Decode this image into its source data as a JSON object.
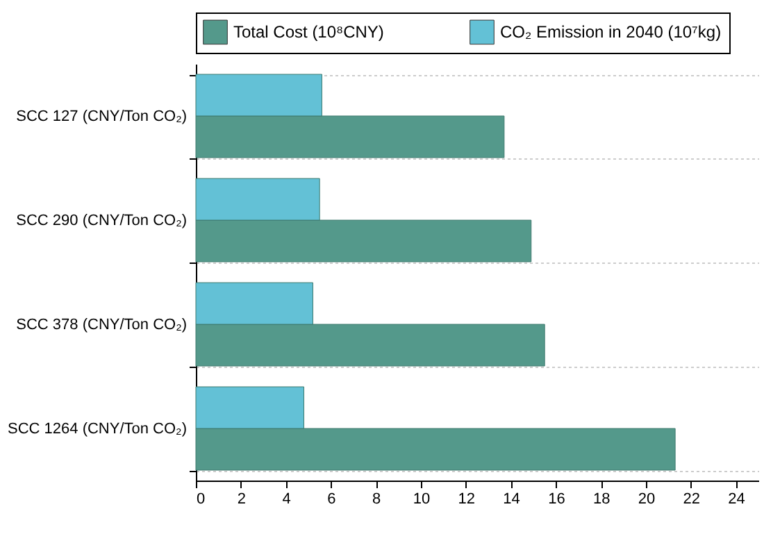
{
  "chart_data": {
    "type": "bar",
    "orientation": "horizontal",
    "categories": [
      "SCC 127 (CNY/Ton CO₂)",
      "SCC 290 (CNY/Ton CO₂)",
      "SCC 378 (CNY/Ton CO₂)",
      "SCC 1264 (CNY/Ton CO₂)"
    ],
    "series": [
      {
        "name": "Total Cost (10⁸CNY)",
        "color": "#54998b",
        "values": [
          13.7,
          14.9,
          15.5,
          21.3
        ]
      },
      {
        "name": "CO₂ Emission in 2040 (10⁷kg)",
        "color": "#63c1d6",
        "values": [
          5.6,
          5.5,
          5.2,
          4.8
        ]
      }
    ],
    "xlim": [
      0,
      25
    ],
    "xticks": [
      0,
      2,
      4,
      6,
      8,
      10,
      12,
      14,
      16,
      18,
      20,
      22,
      24
    ],
    "grid": "y",
    "legend": "top"
  }
}
